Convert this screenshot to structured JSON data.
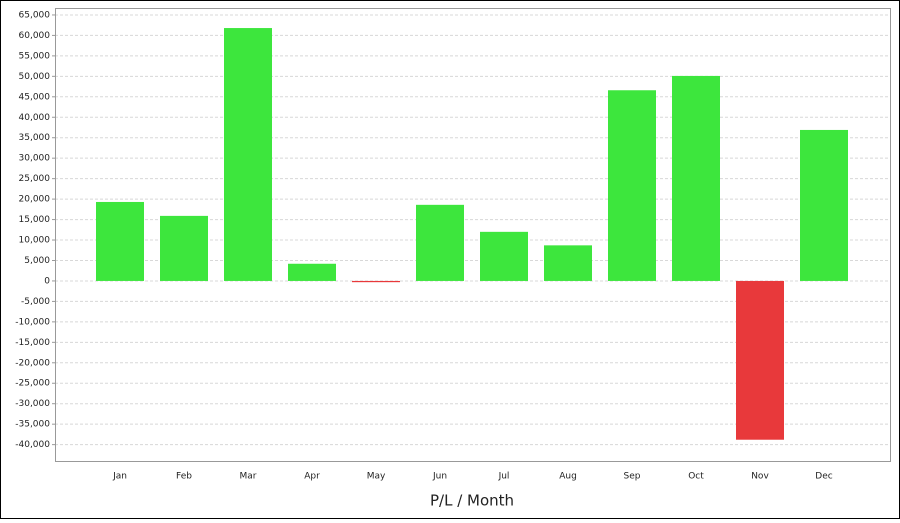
{
  "chart_data": {
    "type": "bar",
    "x_label": "P/L / Month",
    "categories": [
      "Jan",
      "Feb",
      "Mar",
      "Apr",
      "May",
      "Jun",
      "Jul",
      "Aug",
      "Sep",
      "Oct",
      "Nov",
      "Dec"
    ],
    "values": [
      19300,
      15900,
      61800,
      4200,
      -300,
      18600,
      12000,
      8700,
      46600,
      50100,
      -38800,
      36900
    ],
    "positive_color": "#3de63d",
    "negative_color": "#e8393b",
    "ylim": [
      -44000,
      66700
    ],
    "yticks": [
      {
        "value": -40000,
        "label": "-40,000"
      },
      {
        "value": -35000,
        "label": "-35,000"
      },
      {
        "value": -30000,
        "label": "-30,000"
      },
      {
        "value": -25000,
        "label": "-25,000"
      },
      {
        "value": -20000,
        "label": "-20,000"
      },
      {
        "value": -15000,
        "label": "-15,000"
      },
      {
        "value": -10000,
        "label": "-10,000"
      },
      {
        "value": -5000,
        "label": "-5,000"
      },
      0,
      {
        "value": 5000,
        "label": "5,000"
      },
      {
        "value": 10000,
        "label": "10,000"
      },
      {
        "value": 15000,
        "label": "15,000"
      },
      {
        "value": 20000,
        "label": "20,000"
      },
      {
        "value": 25000,
        "label": "25,000"
      },
      {
        "value": 30000,
        "label": "30,000"
      },
      {
        "value": 35000,
        "label": "35,000"
      },
      {
        "value": 40000,
        "label": "40,000"
      },
      {
        "value": 45000,
        "label": "45,000"
      },
      {
        "value": 50000,
        "label": "50,000"
      },
      {
        "value": 55000,
        "label": "55,000"
      },
      {
        "value": 60000,
        "label": "60,000"
      },
      {
        "value": 65000,
        "label": "65,000"
      }
    ],
    "grid": true
  }
}
